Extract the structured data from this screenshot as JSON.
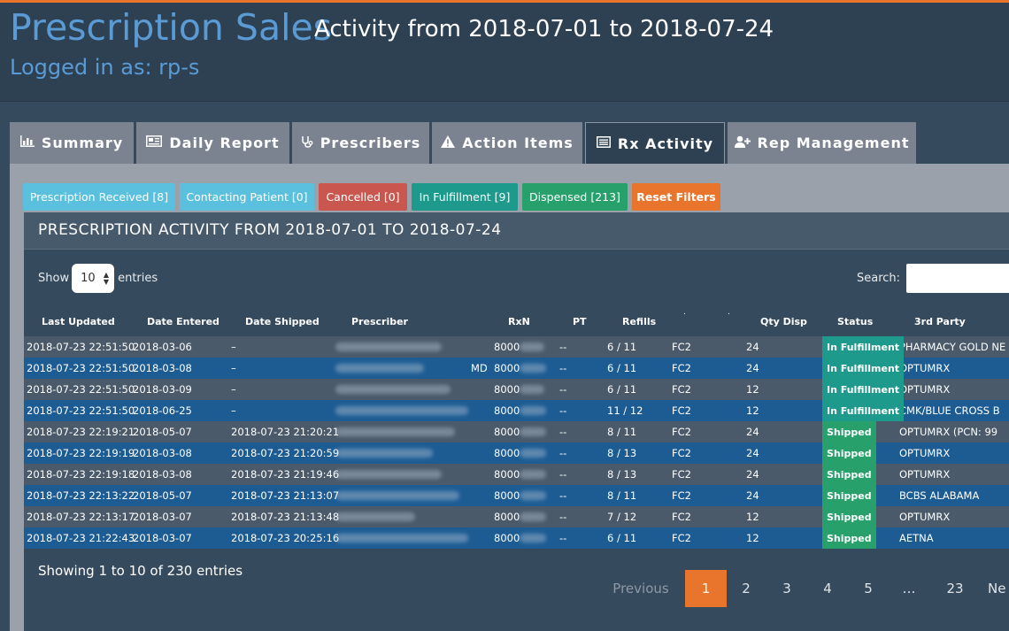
{
  "header": {
    "title": "Prescription Sales",
    "subtitle": "Activity from 2018-07-01 to 2018-07-24",
    "logged_in": "Logged in as: rp-s"
  },
  "tabs": [
    {
      "label": "Summary",
      "icon": "bar-chart-icon"
    },
    {
      "label": "Daily Report",
      "icon": "newspaper-icon"
    },
    {
      "label": "Prescribers",
      "icon": "stethoscope-icon"
    },
    {
      "label": "Action Items",
      "icon": "warning-icon"
    },
    {
      "label": "Rx Activity",
      "icon": "list-alt-icon",
      "active": true
    },
    {
      "label": "Rep Management",
      "icon": "user-plus-icon"
    }
  ],
  "filters": [
    {
      "label": "Prescription Received [8]",
      "color": "#5bc0de"
    },
    {
      "label": "Contacting Patient [0]",
      "color": "#5bc0de"
    },
    {
      "label": "Cancelled [0]",
      "color": "#c9574f"
    },
    {
      "label": "In Fulfillment [9]",
      "color": "#1e9a8c"
    },
    {
      "label": "Dispensed [213]",
      "color": "#27a06b"
    },
    {
      "label": "Reset Filters",
      "color": "#e9742b"
    }
  ],
  "panel": {
    "title": "PRESCRIPTION ACTIVITY FROM 2018-07-01 TO 2018-07-24",
    "show_label": "Show",
    "entries_value": "10",
    "entries_label": "entries",
    "search_label": "Search:",
    "search_value": ""
  },
  "table": {
    "columns": [
      "Last Updated",
      "Date Entered",
      "Date Shipped",
      "Prescriber",
      "RxN",
      "PT",
      "Refills",
      ".",
      ".",
      "Qty Disp",
      "Status",
      "3rd Party"
    ],
    "rows": [
      {
        "last_updated": "2018-07-23 22:51:50",
        "date_entered": "2018-03-06",
        "date_shipped": "–",
        "prescriber_suffix": "",
        "rxn": "8000",
        "pt": "--",
        "refills": "6 / 11",
        "code": "FC2",
        "qty": "24",
        "status": "In Fulfillment",
        "third_party": "PHARMACY GOLD NE"
      },
      {
        "last_updated": "2018-07-23 22:51:50",
        "date_entered": "2018-03-08",
        "date_shipped": "–",
        "prescriber_suffix": "MD",
        "rxn": "8000",
        "pt": "--",
        "refills": "6 / 11",
        "code": "FC2",
        "qty": "24",
        "status": "In Fulfillment",
        "third_party": "OPTUMRX"
      },
      {
        "last_updated": "2018-07-23 22:51:50",
        "date_entered": "2018-03-09",
        "date_shipped": "–",
        "prescriber_suffix": "",
        "rxn": "8000",
        "pt": "--",
        "refills": "6 / 11",
        "code": "FC2",
        "qty": "12",
        "status": "In Fulfillment",
        "third_party": "OPTUMRX"
      },
      {
        "last_updated": "2018-07-23 22:51:50",
        "date_entered": "2018-06-25",
        "date_shipped": "–",
        "prescriber_suffix": "",
        "rxn": "8000",
        "pt": "--",
        "refills": "11 / 12",
        "code": "FC2",
        "qty": "12",
        "status": "In Fulfillment",
        "third_party": "CMK/BLUE CROSS B"
      },
      {
        "last_updated": "2018-07-23 22:19:21",
        "date_entered": "2018-05-07",
        "date_shipped": "2018-07-23 21:20:21",
        "prescriber_suffix": "",
        "rxn": "8000",
        "pt": "--",
        "refills": "8 / 11",
        "code": "FC2",
        "qty": "24",
        "status": "Shipped",
        "third_party": "OPTUMRX (PCN: 99"
      },
      {
        "last_updated": "2018-07-23 22:19:19",
        "date_entered": "2018-03-08",
        "date_shipped": "2018-07-23 21:20:59",
        "prescriber_suffix": "",
        "rxn": "8000",
        "pt": "--",
        "refills": "8 / 13",
        "code": "FC2",
        "qty": "24",
        "status": "Shipped",
        "third_party": "OPTUMRX"
      },
      {
        "last_updated": "2018-07-23 22:19:18",
        "date_entered": "2018-03-08",
        "date_shipped": "2018-07-23 21:19:46",
        "prescriber_suffix": "",
        "rxn": "8000",
        "pt": "--",
        "refills": "8 / 13",
        "code": "FC2",
        "qty": "24",
        "status": "Shipped",
        "third_party": "OPTUMRX"
      },
      {
        "last_updated": "2018-07-23 22:13:22",
        "date_entered": "2018-05-07",
        "date_shipped": "2018-07-23 21:13:07",
        "prescriber_suffix": "",
        "rxn": "8000",
        "pt": "--",
        "refills": "8 / 11",
        "code": "FC2",
        "qty": "24",
        "status": "Shipped",
        "third_party": "BCBS ALABAMA"
      },
      {
        "last_updated": "2018-07-23 22:13:17",
        "date_entered": "2018-03-07",
        "date_shipped": "2018-07-23 21:13:48",
        "prescriber_suffix": "",
        "rxn": "8000",
        "pt": "--",
        "refills": "7 / 12",
        "code": "FC2",
        "qty": "12",
        "status": "Shipped",
        "third_party": "OPTUMRX"
      },
      {
        "last_updated": "2018-07-23 21:22:43",
        "date_entered": "2018-03-07",
        "date_shipped": "2018-07-23 20:25:16",
        "prescriber_suffix": "",
        "rxn": "8000",
        "pt": "--",
        "refills": "6 / 11",
        "code": "FC2",
        "qty": "12",
        "status": "Shipped",
        "third_party": "AETNA"
      }
    ]
  },
  "footer": {
    "info": "Showing 1 to 10 of 230 entries",
    "pagination": [
      "Previous",
      "1",
      "2",
      "3",
      "4",
      "5",
      "…",
      "23",
      "Ne"
    ]
  },
  "colors": {
    "accent": "#e9742b",
    "title_blue": "#5b9bd5",
    "row_blue": "#1d5c93",
    "in_fulfillment": "#1e9a8c",
    "shipped": "#27a06b"
  }
}
